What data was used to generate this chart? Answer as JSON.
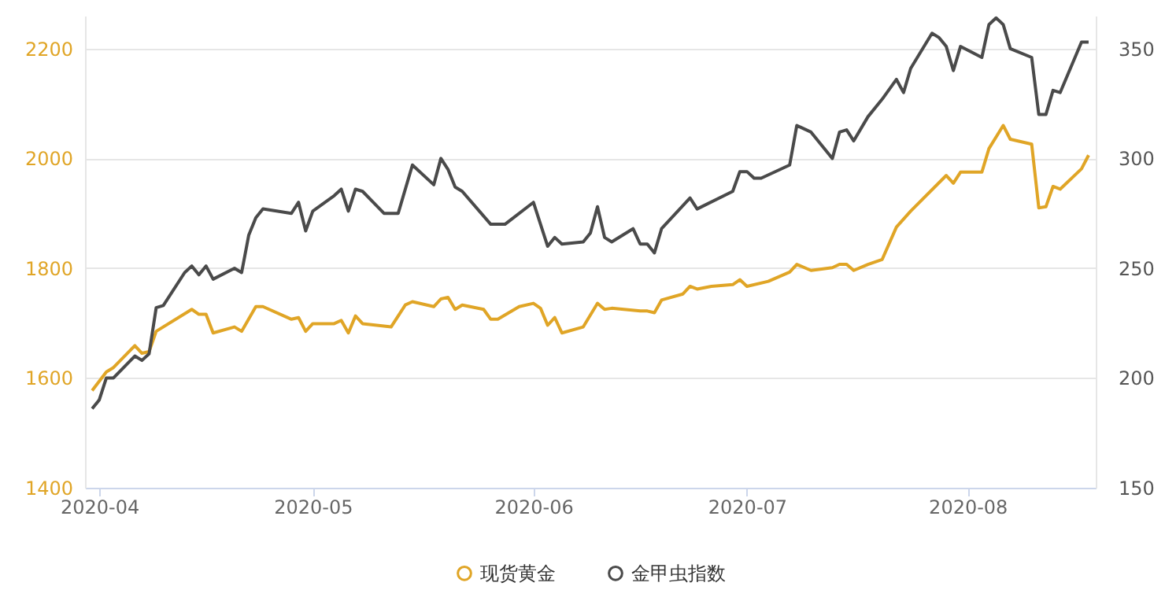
{
  "chart_data": {
    "type": "line",
    "xlim": [
      "2020-03-30",
      "2020-08-19"
    ],
    "xticks": [
      "2020-04",
      "2020-05",
      "2020-06",
      "2020-07",
      "2020-08"
    ],
    "ylim": [
      1400,
      2260
    ],
    "yticks": [
      1400,
      1600,
      1800,
      2000,
      2200
    ],
    "y2lim": [
      150,
      365
    ],
    "y2ticks": [
      150,
      200,
      250,
      300,
      350
    ],
    "grid": "y",
    "legend": "bottom",
    "series": [
      {
        "name": "现货黄金",
        "color": "#e0a526",
        "x": [
          "2020-03-31",
          "2020-04-02",
          "2020-04-03",
          "2020-04-06",
          "2020-04-07",
          "2020-04-08",
          "2020-04-09",
          "2020-04-14",
          "2020-04-15",
          "2020-04-16",
          "2020-04-17",
          "2020-04-20",
          "2020-04-21",
          "2020-04-23",
          "2020-04-24",
          "2020-04-28",
          "2020-04-29",
          "2020-04-30",
          "2020-05-01",
          "2020-05-04",
          "2020-05-05",
          "2020-05-06",
          "2020-05-07",
          "2020-05-08",
          "2020-05-12",
          "2020-05-14",
          "2020-05-15",
          "2020-05-18",
          "2020-05-19",
          "2020-05-20",
          "2020-05-21",
          "2020-05-22",
          "2020-05-25",
          "2020-05-26",
          "2020-05-27",
          "2020-05-30",
          "2020-06-01",
          "2020-06-02",
          "2020-06-03",
          "2020-06-04",
          "2020-06-05",
          "2020-06-08",
          "2020-06-10",
          "2020-06-11",
          "2020-06-12",
          "2020-06-16",
          "2020-06-17",
          "2020-06-18",
          "2020-06-19",
          "2020-06-22",
          "2020-06-23",
          "2020-06-24",
          "2020-06-26",
          "2020-06-29",
          "2020-06-30",
          "2020-07-01",
          "2020-07-04",
          "2020-07-07",
          "2020-07-08",
          "2020-07-10",
          "2020-07-13",
          "2020-07-14",
          "2020-07-15",
          "2020-07-16",
          "2020-07-18",
          "2020-07-20",
          "2020-07-22",
          "2020-07-24",
          "2020-07-29",
          "2020-07-30",
          "2020-07-31",
          "2020-08-03",
          "2020-08-04",
          "2020-08-06",
          "2020-08-07",
          "2020-08-10",
          "2020-08-11",
          "2020-08-12",
          "2020-08-13",
          "2020-08-14",
          "2020-08-17",
          "2020-08-18"
        ],
        "values": [
          1577,
          1611,
          1619,
          1659,
          1645,
          1648,
          1685,
          1725,
          1716,
          1716,
          1682,
          1693,
          1685,
          1730,
          1730,
          1707,
          1710,
          1685,
          1699,
          1699,
          1705,
          1682,
          1713,
          1699,
          1693,
          1733,
          1739,
          1730,
          1744,
          1747,
          1725,
          1733,
          1725,
          1707,
          1707,
          1730,
          1736,
          1727,
          1696,
          1710,
          1682,
          1693,
          1736,
          1725,
          1727,
          1722,
          1722,
          1719,
          1742,
          1753,
          1767,
          1762,
          1767,
          1770,
          1779,
          1767,
          1776,
          1793,
          1807,
          1796,
          1801,
          1807,
          1807,
          1796,
          1807,
          1816,
          1875,
          1904,
          1969,
          1955,
          1975,
          1975,
          2018,
          2060,
          2035,
          2026,
          1910,
          1912,
          1949,
          1944,
          1981,
          2006
        ]
      },
      {
        "name": "金甲虫指数",
        "color": "#4a4a4a",
        "axis": "y2",
        "x": [
          "2020-03-31",
          "2020-04-01",
          "2020-04-02",
          "2020-04-03",
          "2020-04-06",
          "2020-04-07",
          "2020-04-08",
          "2020-04-09",
          "2020-04-10",
          "2020-04-13",
          "2020-04-14",
          "2020-04-15",
          "2020-04-16",
          "2020-04-17",
          "2020-04-20",
          "2020-04-21",
          "2020-04-22",
          "2020-04-23",
          "2020-04-24",
          "2020-04-28",
          "2020-04-29",
          "2020-04-30",
          "2020-05-01",
          "2020-05-04",
          "2020-05-05",
          "2020-05-06",
          "2020-05-07",
          "2020-05-08",
          "2020-05-11",
          "2020-05-13",
          "2020-05-15",
          "2020-05-18",
          "2020-05-19",
          "2020-05-20",
          "2020-05-21",
          "2020-05-22",
          "2020-05-26",
          "2020-05-28",
          "2020-06-01",
          "2020-06-03",
          "2020-06-04",
          "2020-06-05",
          "2020-06-08",
          "2020-06-09",
          "2020-06-10",
          "2020-06-11",
          "2020-06-12",
          "2020-06-15",
          "2020-06-16",
          "2020-06-17",
          "2020-06-18",
          "2020-06-19",
          "2020-06-23",
          "2020-06-24",
          "2020-06-29",
          "2020-06-30",
          "2020-07-01",
          "2020-07-02",
          "2020-07-03",
          "2020-07-07",
          "2020-07-08",
          "2020-07-10",
          "2020-07-13",
          "2020-07-14",
          "2020-07-15",
          "2020-07-16",
          "2020-07-18",
          "2020-07-20",
          "2020-07-22",
          "2020-07-23",
          "2020-07-24",
          "2020-07-27",
          "2020-07-28",
          "2020-07-29",
          "2020-07-30",
          "2020-07-31",
          "2020-08-03",
          "2020-08-04",
          "2020-08-05",
          "2020-08-06",
          "2020-08-07",
          "2020-08-10",
          "2020-08-11",
          "2020-08-12",
          "2020-08-13",
          "2020-08-14",
          "2020-08-17",
          "2020-08-18"
        ],
        "values": [
          186,
          190,
          200,
          200,
          210,
          208,
          211,
          232,
          233,
          248,
          251,
          247,
          251,
          245,
          250,
          248,
          265,
          273,
          277,
          275,
          280,
          267,
          276,
          283,
          286,
          276,
          286,
          285,
          275,
          275,
          297,
          288,
          300,
          295,
          287,
          285,
          270,
          270,
          280,
          260,
          264,
          261,
          262,
          266,
          278,
          264,
          262,
          268,
          261,
          261,
          257,
          268,
          282,
          277,
          285,
          294,
          294,
          291,
          291,
          297,
          315,
          312,
          300,
          312,
          313,
          308,
          319,
          327,
          336,
          330,
          341,
          357,
          355,
          351,
          340,
          351,
          346,
          361,
          364,
          361,
          350,
          346,
          320,
          320,
          331,
          330,
          353,
          353
        ]
      }
    ]
  }
}
